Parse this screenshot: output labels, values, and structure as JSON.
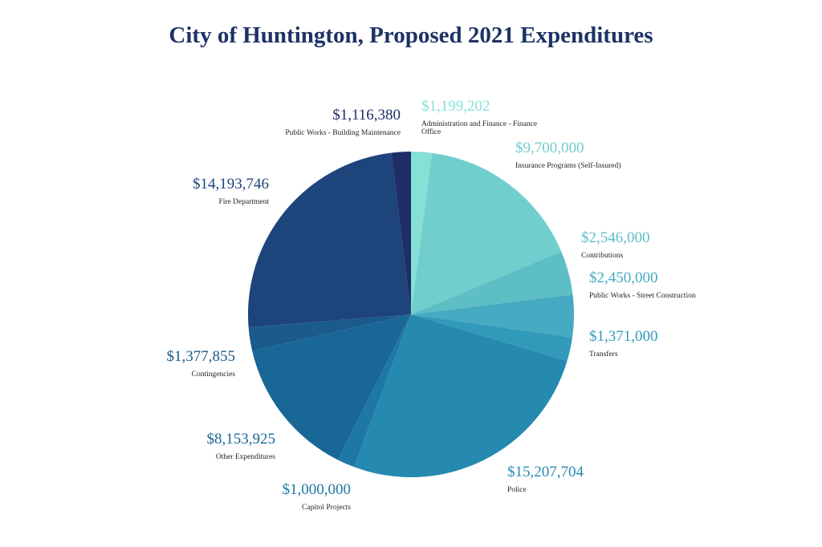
{
  "chart_data": {
    "type": "pie",
    "title": "City of Huntington, Proposed 2021 Expenditures",
    "title_color": "#1d3365",
    "start": "12 o'clock",
    "direction": "clockwise",
    "slices": [
      {
        "name": "Administration and Finance - Finance",
        "name_line2": "Office",
        "label": "$1,199,202",
        "value": 1199202,
        "color": "#86e0d6",
        "label_color": "#86e0d6"
      },
      {
        "name": "Insurance Programs (Self-Insured)",
        "label": "$9,700,000",
        "value": 9700000,
        "color": "#70cecd",
        "label_color": "#70cecd"
      },
      {
        "name": "Contributions",
        "label": "$2,546,000",
        "value": 2546000,
        "color": "#5dbec6",
        "label_color": "#5dbec6"
      },
      {
        "name": "Public Works - Street Construction",
        "label": "$2,450,000",
        "value": 2450000,
        "color": "#46aac2",
        "label_color": "#46aac2"
      },
      {
        "name": "Transfers",
        "label": "$1,371,000",
        "value": 1371000,
        "color": "#329ab9",
        "label_color": "#329ab9"
      },
      {
        "name": "Police",
        "label": "$15,207,704",
        "value": 15207704,
        "color": "#2589b0",
        "label_color": "#2589b0"
      },
      {
        "name": "Capitol Projects",
        "label": "$1,000,000",
        "value": 1000000,
        "color": "#1d78a4",
        "label_color": "#1d78a4"
      },
      {
        "name": "Other Expenditures",
        "label": "$8,153,925",
        "value": 8153925,
        "color": "#196796",
        "label_color": "#196796"
      },
      {
        "name": "Contingencies",
        "label": "$1,377,855",
        "value": 1377855,
        "color": "#1a5a8c",
        "label_color": "#1a5a8c"
      },
      {
        "name": "Fire Department",
        "label": "$14,193,746",
        "value": 14193746,
        "color": "#1d447b",
        "label_color": "#1d447b"
      },
      {
        "name": "Public Works - Building Maintenance",
        "label": "$1,116,380",
        "value": 1116380,
        "color": "#1f2e66",
        "label_color": "#1f2e66"
      }
    ]
  }
}
